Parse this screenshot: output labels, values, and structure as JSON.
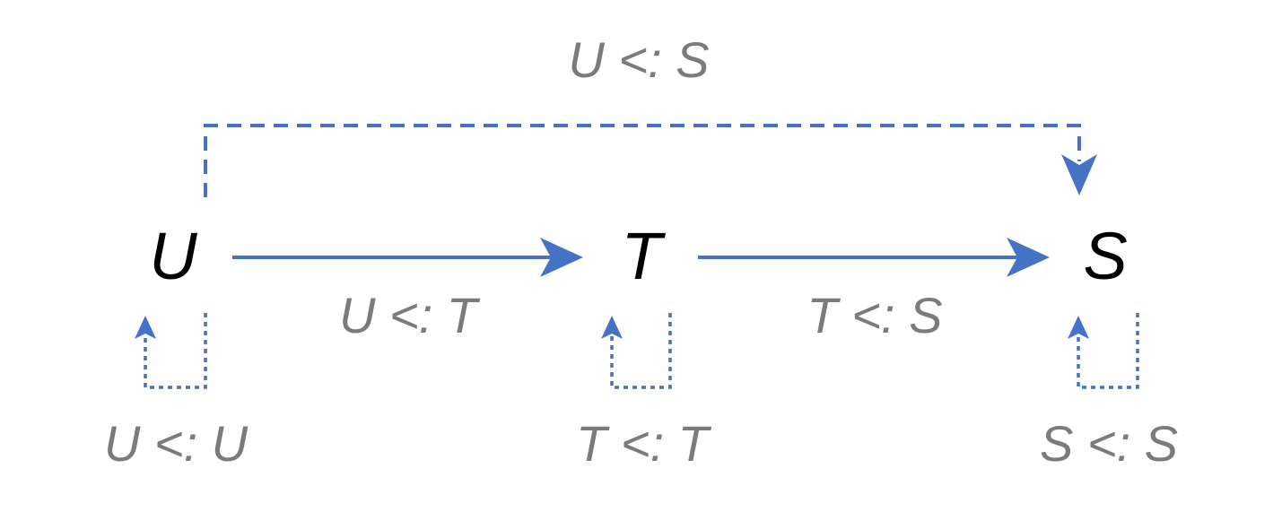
{
  "nodes": {
    "u": "U",
    "t": "T",
    "s": "S"
  },
  "relations": {
    "u_sub_t": "U <: T",
    "t_sub_s": "T <: S",
    "u_sub_s": "U <: S",
    "u_sub_u": "U <: U",
    "t_sub_t": "T <: T",
    "s_sub_s": "S <: S"
  },
  "colors": {
    "arrow": "#4472c4",
    "node_text": "#000000",
    "relation_text": "#7b7b7b"
  }
}
